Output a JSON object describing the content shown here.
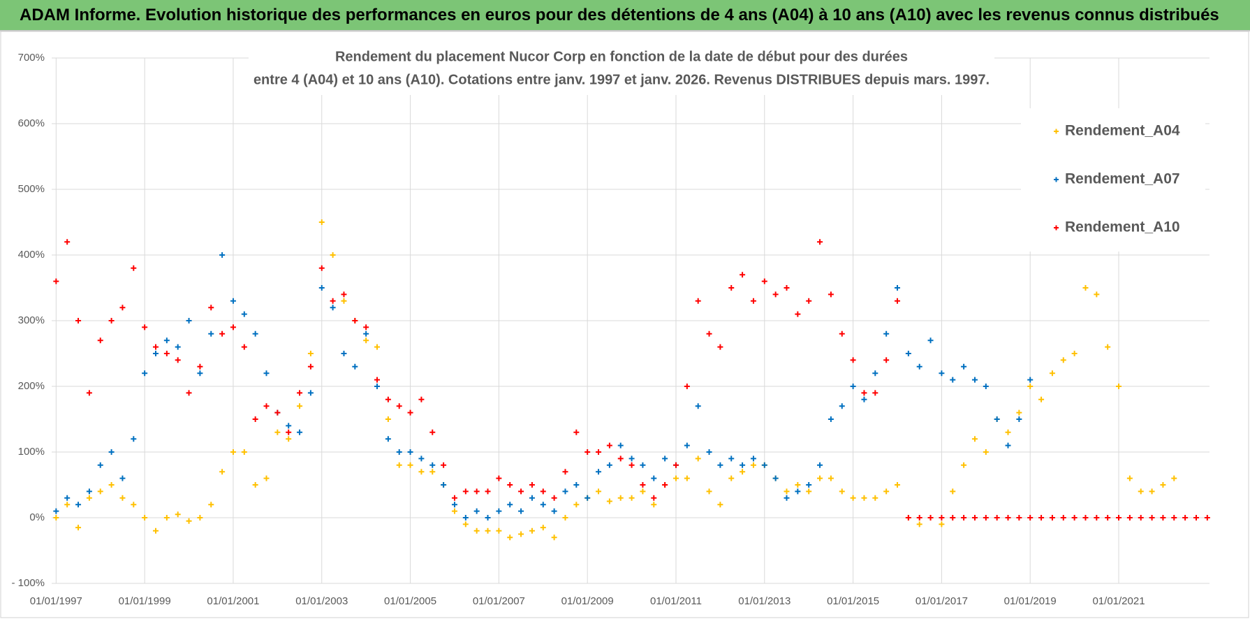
{
  "header_title": "ADAM Informe. Evolution historique des performances en euros pour des détentions de 4 ans (A04) à 10 ans (A10) avec les revenus connus distribués",
  "chart_data": {
    "type": "scatter",
    "title": "Rendement du placement Nucor Corp en fonction de la date de début pour des durées",
    "subtitle": "entre 4 (A04) et 10 ans (A10).  Cotations entre janv. 1997 et janv. 2026.  Revenus DISTRIBUES depuis mars. 1997.",
    "xlim": [
      1996.9,
      2023.05
    ],
    "ylim": [
      -100,
      700
    ],
    "xticks": [
      {
        "value": 1997,
        "label": "01/01/1997"
      },
      {
        "value": 1999,
        "label": "01/01/1999"
      },
      {
        "value": 2001,
        "label": "01/01/2001"
      },
      {
        "value": 2003,
        "label": "01/01/2003"
      },
      {
        "value": 2005,
        "label": "01/01/2005"
      },
      {
        "value": 2007,
        "label": "01/01/2007"
      },
      {
        "value": 2009,
        "label": "01/01/2009"
      },
      {
        "value": 2011,
        "label": "01/01/2011"
      },
      {
        "value": 2013,
        "label": "01/01/2013"
      },
      {
        "value": 2015,
        "label": "01/01/2015"
      },
      {
        "value": 2017,
        "label": "01/01/2017"
      },
      {
        "value": 2019,
        "label": "01/01/2019"
      },
      {
        "value": 2021,
        "label": "01/01/2021"
      }
    ],
    "yticks": [
      {
        "value": -100,
        "label": "- 100%"
      },
      {
        "value": 0,
        "label": "0%"
      },
      {
        "value": 100,
        "label": "100%"
      },
      {
        "value": 200,
        "label": "200%"
      },
      {
        "value": 300,
        "label": "300%"
      },
      {
        "value": 400,
        "label": "400%"
      },
      {
        "value": 500,
        "label": "500%"
      },
      {
        "value": 600,
        "label": "600%"
      },
      {
        "value": 700,
        "label": "700%"
      }
    ],
    "grid": true,
    "legend": "right",
    "series": [
      {
        "name": "Rendement_A04",
        "color": "#ffc000",
        "x": [
          1997,
          1997.25,
          1997.5,
          1997.75,
          1998,
          1998.25,
          1998.5,
          1998.75,
          1999,
          1999.25,
          1999.5,
          1999.75,
          2000,
          2000.25,
          2000.5,
          2000.75,
          2001,
          2001.25,
          2001.5,
          2001.75,
          2002,
          2002.25,
          2002.5,
          2002.75,
          2003,
          2003.25,
          2003.5,
          2003.75,
          2004,
          2004.25,
          2004.5,
          2004.75,
          2005,
          2005.25,
          2005.5,
          2005.75,
          2006,
          2006.25,
          2006.5,
          2006.75,
          2007,
          2007.25,
          2007.5,
          2007.75,
          2008,
          2008.25,
          2008.5,
          2008.75,
          2009,
          2009.25,
          2009.5,
          2009.75,
          2010,
          2010.25,
          2010.5,
          2010.75,
          2011,
          2011.25,
          2011.5,
          2011.75,
          2012,
          2012.25,
          2012.5,
          2012.75,
          2013,
          2013.25,
          2013.5,
          2013.75,
          2014,
          2014.25,
          2014.5,
          2014.75,
          2015,
          2015.25,
          2015.5,
          2015.75,
          2016,
          2016.25,
          2016.5,
          2016.75,
          2017,
          2017.25,
          2017.5,
          2017.75,
          2018,
          2018.25,
          2018.5,
          2018.75,
          2019,
          2019.25,
          2019.5,
          2019.75,
          2020,
          2020.25,
          2020.5,
          2020.75,
          2021,
          2021.25,
          2021.5,
          2021.75,
          2022,
          2022.25
        ],
        "values": [
          0,
          20,
          -15,
          30,
          40,
          50,
          30,
          20,
          0,
          -20,
          0,
          5,
          -5,
          0,
          20,
          70,
          100,
          100,
          50,
          60,
          130,
          120,
          170,
          250,
          450,
          400,
          330,
          300,
          270,
          260,
          150,
          80,
          80,
          70,
          70,
          50,
          10,
          -10,
          -20,
          -20,
          -20,
          -30,
          -25,
          -20,
          -15,
          -30,
          0,
          20,
          30,
          40,
          25,
          30,
          30,
          40,
          20,
          50,
          60,
          60,
          90,
          40,
          20,
          60,
          70,
          80,
          80,
          60,
          40,
          50,
          40,
          60,
          60,
          40,
          30,
          30,
          30,
          40,
          50,
          0,
          -10,
          0,
          -10,
          40,
          80,
          120,
          100,
          150,
          130,
          160,
          200,
          180,
          220,
          240,
          250,
          350,
          340,
          260,
          200,
          60,
          40,
          40,
          50,
          60
        ]
      },
      {
        "name": "Rendement_A07",
        "color": "#0070c0",
        "x": [
          1997,
          1997.25,
          1997.5,
          1997.75,
          1998,
          1998.25,
          1998.5,
          1998.75,
          1999,
          1999.25,
          1999.5,
          1999.75,
          2000,
          2000.25,
          2000.5,
          2000.75,
          2001,
          2001.25,
          2001.5,
          2001.75,
          2002,
          2002.25,
          2002.5,
          2002.75,
          2003,
          2003.25,
          2003.5,
          2003.75,
          2004,
          2004.25,
          2004.5,
          2004.75,
          2005,
          2005.25,
          2005.5,
          2005.75,
          2006,
          2006.25,
          2006.5,
          2006.75,
          2007,
          2007.25,
          2007.5,
          2007.75,
          2008,
          2008.25,
          2008.5,
          2008.75,
          2009,
          2009.25,
          2009.5,
          2009.75,
          2010,
          2010.25,
          2010.5,
          2010.75,
          2011,
          2011.25,
          2011.5,
          2011.75,
          2012,
          2012.25,
          2012.5,
          2012.75,
          2013,
          2013.25,
          2013.5,
          2013.75,
          2014,
          2014.25,
          2014.5,
          2014.75,
          2015,
          2015.25,
          2015.5,
          2015.75,
          2016,
          2016.25,
          2016.5,
          2016.75,
          2017,
          2017.25,
          2017.5,
          2017.75,
          2018,
          2018.25,
          2018.5,
          2018.75,
          2019
        ],
        "values": [
          10,
          30,
          20,
          40,
          80,
          100,
          60,
          120,
          220,
          250,
          270,
          260,
          300,
          220,
          280,
          400,
          330,
          310,
          280,
          220,
          160,
          140,
          130,
          190,
          350,
          320,
          250,
          230,
          280,
          200,
          120,
          100,
          100,
          90,
          80,
          50,
          20,
          0,
          10,
          0,
          10,
          20,
          10,
          30,
          20,
          10,
          40,
          50,
          30,
          70,
          80,
          110,
          90,
          80,
          60,
          90,
          80,
          110,
          170,
          100,
          80,
          90,
          80,
          90,
          80,
          60,
          30,
          40,
          50,
          80,
          150,
          170,
          200,
          180,
          220,
          280,
          350,
          250,
          230,
          270,
          220,
          210,
          230,
          210,
          200,
          150,
          110,
          150,
          210
        ]
      },
      {
        "name": "Rendement_A10",
        "color": "#ff0000",
        "x": [
          1997,
          1997.25,
          1997.5,
          1997.75,
          1998,
          1998.25,
          1998.5,
          1998.75,
          1999,
          1999.25,
          1999.5,
          1999.75,
          2000,
          2000.25,
          2000.5,
          2000.75,
          2001,
          2001.25,
          2001.5,
          2001.75,
          2002,
          2002.25,
          2002.5,
          2002.75,
          2003,
          2003.25,
          2003.5,
          2003.75,
          2004,
          2004.25,
          2004.5,
          2004.75,
          2005,
          2005.25,
          2005.5,
          2005.75,
          2006,
          2006.25,
          2006.5,
          2006.75,
          2007,
          2007.25,
          2007.5,
          2007.75,
          2008,
          2008.25,
          2008.5,
          2008.75,
          2009,
          2009.25,
          2009.5,
          2009.75,
          2010,
          2010.25,
          2010.5,
          2010.75,
          2011,
          2011.25,
          2011.5,
          2011.75,
          2012,
          2012.25,
          2012.5,
          2012.75,
          2013,
          2013.25,
          2013.5,
          2013.75,
          2014,
          2014.25,
          2014.5,
          2014.75,
          2015,
          2015.25,
          2015.5,
          2015.75,
          2016,
          2016.25,
          2016.5,
          2016.75,
          2017,
          2017.25,
          2017.5,
          2017.75,
          2018,
          2018.25,
          2018.5,
          2018.75,
          2019,
          2019.25,
          2019.5,
          2019.75,
          2020,
          2020.25,
          2020.5,
          2020.75,
          2021,
          2021.25,
          2021.5,
          2021.75,
          2022,
          2022.25,
          2022.5,
          2022.75,
          2023
        ],
        "values": [
          360,
          420,
          300,
          190,
          270,
          300,
          320,
          380,
          290,
          260,
          250,
          240,
          190,
          230,
          320,
          280,
          290,
          260,
          150,
          170,
          160,
          130,
          190,
          230,
          380,
          330,
          340,
          300,
          290,
          210,
          180,
          170,
          160,
          180,
          130,
          80,
          30,
          40,
          40,
          40,
          60,
          50,
          40,
          50,
          40,
          30,
          70,
          130,
          100,
          100,
          110,
          90,
          80,
          50,
          30,
          50,
          80,
          200,
          330,
          280,
          260,
          350,
          370,
          330,
          360,
          340,
          350,
          310,
          330,
          420,
          340,
          280,
          240,
          190,
          190,
          240,
          330,
          0,
          0,
          0,
          0,
          0,
          0,
          0,
          0,
          0,
          0,
          0,
          0,
          0,
          0,
          0,
          0,
          0,
          0,
          0,
          0,
          0,
          0,
          0,
          0,
          0,
          0,
          0,
          0
        ]
      }
    ]
  }
}
